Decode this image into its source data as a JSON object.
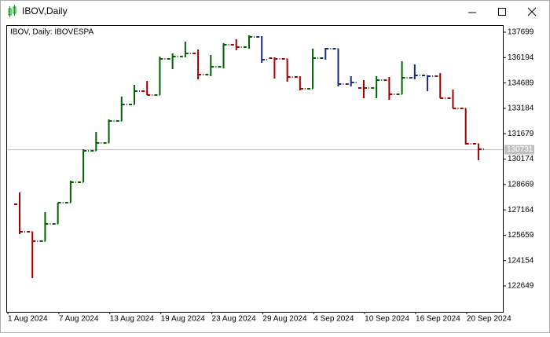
{
  "window": {
    "title": "IBOV,Daily"
  },
  "chart_data": {
    "type": "ohlc",
    "title": "IBOV, Daily:  IBOVESPA",
    "categories": [
      "1 Aug 2024",
      null,
      null,
      null,
      "7 Aug 2024",
      null,
      null,
      null,
      "13 Aug 2024",
      null,
      null,
      null,
      "19 Aug 2024",
      null,
      null,
      null,
      "23 Aug 2024",
      null,
      null,
      null,
      "29 Aug 2024",
      null,
      null,
      null,
      "4 Sep 2024",
      null,
      null,
      null,
      "10 Sep 2024",
      null,
      null,
      null,
      "16 Sep 2024",
      null,
      null,
      null,
      "20 Sep 2024"
    ],
    "open": [
      127496,
      125865,
      125306,
      126331,
      127589,
      128800,
      130664,
      131130,
      132434,
      133413,
      134205,
      133972,
      136115,
      136255,
      136441,
      135183,
      135649,
      136954,
      136814,
      137419,
      136162,
      136115,
      135043,
      134345,
      136162,
      136721,
      134624,
      134391,
      134391,
      134857,
      134018,
      134997,
      135136,
      135090,
      133785,
      133180,
      131083
    ],
    "high": [
      128195,
      125865,
      127030,
      127589,
      128894,
      130757,
      131782,
      132527,
      133879,
      134578,
      134810,
      136255,
      136441,
      137140,
      136674,
      136348,
      137047,
      137280,
      137513,
      137466,
      136208,
      136115,
      135090,
      136721,
      136767,
      136721,
      135090,
      134857,
      135090,
      135043,
      135975,
      135789,
      135136,
      135276,
      134298,
      133180,
      131083
    ],
    "low": [
      125725,
      123116,
      125306,
      126331,
      127589,
      128800,
      130664,
      131130,
      132434,
      133413,
      133972,
      133972,
      135509,
      136208,
      134903,
      135090,
      135556,
      136627,
      136721,
      135882,
      134950,
      134764,
      134251,
      134345,
      136068,
      134484,
      134484,
      133785,
      133785,
      133692,
      134018,
      134903,
      134205,
      133785,
      133180,
      131037,
      130105
    ],
    "close": [
      125865,
      125306,
      126331,
      127589,
      128800,
      130664,
      131130,
      132434,
      133413,
      134205,
      133972,
      136115,
      136255,
      136441,
      135183,
      135649,
      136954,
      136814,
      137419,
      136068,
      136115,
      135043,
      134345,
      136162,
      136721,
      134624,
      134717,
      134391,
      134857,
      134018,
      134997,
      135136,
      135090,
      133785,
      133180,
      131083,
      130757
    ],
    "colors": [
      "#a00000",
      "#a00000",
      "#006000",
      "#006000",
      "#006000",
      "#006000",
      "#006000",
      "#006000",
      "#006000",
      "#006000",
      "#a00000",
      "#006000",
      "#006000",
      "#006000",
      "#a00000",
      "#006000",
      "#006000",
      "#a00000",
      "#006000",
      "#1c2a80",
      "#a00000",
      "#a00000",
      "#a00000",
      "#006000",
      "#1c2a80",
      "#1c2a80",
      "#1c2a80",
      "#a00000",
      "#006000",
      "#a00000",
      "#006000",
      "#1c2a80",
      "#1c2a80",
      "#a00000",
      "#a00000",
      "#a00000",
      "#a00000"
    ],
    "ylim": [
      121113,
      138072
    ],
    "yticks": [
      122649,
      124154,
      125659,
      127164,
      128669,
      130174,
      131679,
      133184,
      134689,
      136194,
      137699
    ],
    "current_price": 130731
  }
}
